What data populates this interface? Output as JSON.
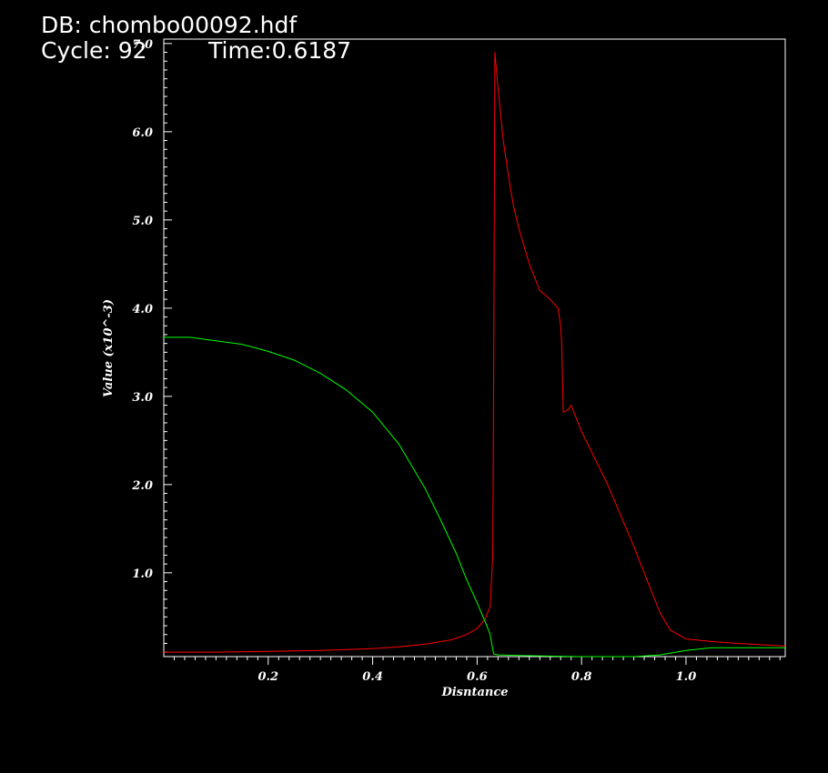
{
  "header": {
    "db_line": "DB: chombo00092.hdf",
    "cycle_line": "Cycle: 92",
    "time_line": "Time:0.6187"
  },
  "chart_data": {
    "type": "line",
    "xlabel": "Disntance",
    "ylabel": "Value (x10^-3)",
    "xlim": [
      0.0,
      1.19
    ],
    "ylim": [
      0.05,
      7.05
    ],
    "x_ticks": [
      "0.2",
      "0.4",
      "0.6",
      "0.8",
      "1.0"
    ],
    "y_ticks": [
      "1.0",
      "2.0",
      "3.0",
      "4.0",
      "5.0",
      "6.0",
      "7.0"
    ],
    "grid": false,
    "colors": {
      "background": "#000000",
      "axes": "#ffffff",
      "red_series": "#ff0000",
      "green_series": "#00ff00"
    },
    "series": [
      {
        "color": "#ff0000",
        "x": [
          0.0,
          0.1,
          0.2,
          0.3,
          0.4,
          0.45,
          0.5,
          0.55,
          0.58,
          0.6,
          0.615,
          0.625,
          0.63,
          0.632,
          0.634,
          0.64,
          0.65,
          0.66,
          0.67,
          0.68,
          0.69,
          0.7,
          0.71,
          0.72,
          0.73,
          0.74,
          0.755,
          0.76,
          0.762,
          0.765,
          0.775,
          0.78,
          0.8,
          0.85,
          0.9,
          0.92,
          0.95,
          0.97,
          1.0,
          1.05,
          1.1,
          1.19
        ],
        "y": [
          0.1,
          0.1,
          0.11,
          0.12,
          0.14,
          0.16,
          0.19,
          0.24,
          0.3,
          0.37,
          0.47,
          0.62,
          1.2,
          3.5,
          6.9,
          6.5,
          5.9,
          5.5,
          5.15,
          4.9,
          4.7,
          4.5,
          4.35,
          4.2,
          4.15,
          4.1,
          4.0,
          3.8,
          3.6,
          2.82,
          2.85,
          2.9,
          2.6,
          2.0,
          1.3,
          1.0,
          0.55,
          0.35,
          0.25,
          0.22,
          0.2,
          0.17
        ]
      },
      {
        "color": "#00ff00",
        "x": [
          0.0,
          0.05,
          0.1,
          0.15,
          0.2,
          0.25,
          0.3,
          0.35,
          0.4,
          0.45,
          0.5,
          0.53,
          0.56,
          0.58,
          0.6,
          0.61,
          0.62,
          0.625,
          0.628,
          0.63,
          0.632,
          0.64,
          0.7,
          0.8,
          0.9,
          0.95,
          1.0,
          1.05,
          1.1,
          1.19
        ],
        "y": [
          3.67,
          3.67,
          3.63,
          3.59,
          3.51,
          3.41,
          3.26,
          3.07,
          2.82,
          2.46,
          1.96,
          1.6,
          1.22,
          0.92,
          0.66,
          0.52,
          0.38,
          0.3,
          0.2,
          0.13,
          0.08,
          0.07,
          0.06,
          0.05,
          0.05,
          0.07,
          0.12,
          0.15,
          0.15,
          0.15
        ]
      }
    ]
  }
}
